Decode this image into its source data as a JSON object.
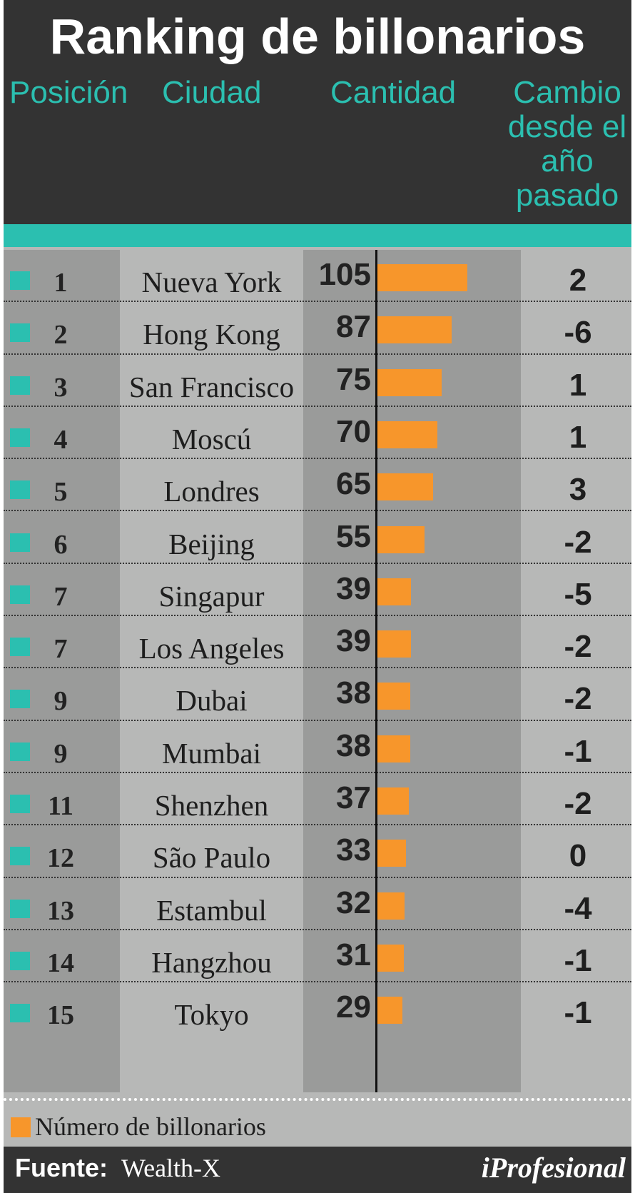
{
  "title": "Ranking de billonarios",
  "headers": {
    "position": "Posición",
    "city": "Ciudad",
    "quantity": "Cantidad",
    "change": "Cambio desde el año pasado"
  },
  "legend": {
    "label": "Número de billonarios",
    "color": "#f7962b"
  },
  "footer": {
    "source_label": "Fuente:",
    "source": "Wealth-X",
    "brand": "iProfesional"
  },
  "colors": {
    "accent": "#2bbfb0",
    "bar": "#f7962b",
    "header_bg": "#333333",
    "panel_bg": "#b7b8b7"
  },
  "chart_data": {
    "type": "table",
    "title": "Ranking de billonarios",
    "columns": [
      "Posición",
      "Ciudad",
      "Cantidad",
      "Cambio desde el año pasado"
    ],
    "rows": [
      {
        "position": "1",
        "city": "Nueva York",
        "count": 105,
        "change": "2"
      },
      {
        "position": "2",
        "city": "Hong Kong",
        "count": 87,
        "change": "-6"
      },
      {
        "position": "3",
        "city": "San Francisco",
        "count": 75,
        "change": "1"
      },
      {
        "position": "4",
        "city": "Moscú",
        "count": 70,
        "change": "1"
      },
      {
        "position": "5",
        "city": "Londres",
        "count": 65,
        "change": "3"
      },
      {
        "position": "6",
        "city": "Beijing",
        "count": 55,
        "change": "-2"
      },
      {
        "position": "7",
        "city": "Singapur",
        "count": 39,
        "change": "-5"
      },
      {
        "position": "7",
        "city": "Los Angeles",
        "count": 39,
        "change": "-2"
      },
      {
        "position": "9",
        "city": "Dubai",
        "count": 38,
        "change": "-2"
      },
      {
        "position": "9",
        "city": "Mumbai",
        "count": 38,
        "change": "-1"
      },
      {
        "position": "11",
        "city": "Shenzhen",
        "count": 37,
        "change": "-2"
      },
      {
        "position": "12",
        "city": "São Paulo",
        "count": 33,
        "change": "0"
      },
      {
        "position": "13",
        "city": "Estambul",
        "count": 32,
        "change": "-4"
      },
      {
        "position": "14",
        "city": "Hangzhou",
        "count": 31,
        "change": "-1"
      },
      {
        "position": "15",
        "city": "Tokyo",
        "count": 29,
        "change": "-1"
      }
    ]
  }
}
